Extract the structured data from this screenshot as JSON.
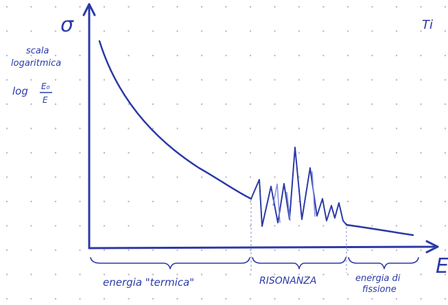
{
  "axes": {
    "y_label": "σ",
    "x_label": "E"
  },
  "annotations": {
    "scale": [
      "scala",
      "logaritmica"
    ],
    "formula": {
      "prefix": "log",
      "numerator": "E₀",
      "denominator": "E"
    }
  },
  "regions": [
    "energia \"termica\"",
    "RISONANZA",
    "energia di fissione"
  ],
  "corner_text": "Ti"
}
